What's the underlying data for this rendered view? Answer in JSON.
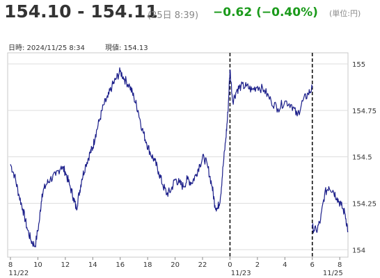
{
  "header": {
    "price_range": "154.10 - 154.11",
    "timestamp": "(25日 8:39)",
    "change": "−0.62 (−0.40%)",
    "unit": "(単位:円)"
  },
  "info": {
    "datetime": "日時: 2024/11/25 8:34",
    "current": "現値: 154.13"
  },
  "colors": {
    "line": "#1c1f8a",
    "grid": "#dddddd",
    "change": "#1a9a1a"
  },
  "chart_data": {
    "type": "line",
    "ylim": [
      153.96,
      155.06
    ],
    "y_ticks": [
      154,
      154.25,
      154.5,
      154.75,
      155
    ],
    "y_tick_labels": [
      "154",
      "154.25",
      "154.5",
      "154.75",
      "155"
    ],
    "x_ticks": [
      {
        "label": "8",
        "idx": 0
      },
      {
        "label": "10",
        "idx": 2
      },
      {
        "label": "12",
        "idx": 4
      },
      {
        "label": "14",
        "idx": 6
      },
      {
        "label": "16",
        "idx": 8
      },
      {
        "label": "18",
        "idx": 10
      },
      {
        "label": "20",
        "idx": 12
      },
      {
        "label": "22",
        "idx": 14
      },
      {
        "label": "0",
        "idx": 16
      },
      {
        "label": "2",
        "idx": 18
      },
      {
        "label": "4",
        "idx": 20
      },
      {
        "label": "6",
        "idx": 22
      },
      {
        "label": "8",
        "idx": 24
      }
    ],
    "date_labels": [
      {
        "label": "11/22",
        "idx": 0.6
      },
      {
        "label": "11/23",
        "idx": 16.8
      },
      {
        "label": "11/25",
        "idx": 23.5
      }
    ],
    "session_breaks": [
      16,
      22
    ],
    "series": [
      {
        "segments": [
          [
            [
              0,
              154.46
            ],
            [
              0.3,
              154.4
            ],
            [
              0.6,
              154.3
            ],
            [
              0.9,
              154.22
            ],
            [
              1.2,
              154.12
            ],
            [
              1.5,
              154.05
            ],
            [
              1.8,
              154.02
            ],
            [
              2.1,
              154.15
            ],
            [
              2.3,
              154.3
            ],
            [
              2.6,
              154.35
            ],
            [
              2.9,
              154.38
            ],
            [
              3.3,
              154.4
            ],
            [
              3.7,
              154.45
            ],
            [
              4.0,
              154.42
            ],
            [
              4.3,
              154.35
            ],
            [
              4.6,
              154.28
            ],
            [
              4.8,
              154.22
            ],
            [
              5.0,
              154.3
            ],
            [
              5.2,
              154.38
            ],
            [
              5.5,
              154.46
            ],
            [
              5.8,
              154.52
            ],
            [
              6.0,
              154.55
            ],
            [
              6.2,
              154.62
            ],
            [
              6.5,
              154.7
            ],
            [
              6.8,
              154.78
            ],
            [
              7.1,
              154.82
            ],
            [
              7.4,
              154.88
            ],
            [
              7.7,
              154.92
            ],
            [
              8.0,
              154.96
            ],
            [
              8.3,
              154.92
            ],
            [
              8.7,
              154.88
            ],
            [
              9.0,
              154.82
            ],
            [
              9.3,
              154.75
            ],
            [
              9.6,
              154.65
            ],
            [
              9.9,
              154.58
            ],
            [
              10.2,
              154.52
            ],
            [
              10.5,
              154.48
            ],
            [
              10.8,
              154.42
            ],
            [
              11.1,
              154.35
            ],
            [
              11.4,
              154.3
            ],
            [
              11.7,
              154.32
            ],
            [
              12.0,
              154.38
            ],
            [
              12.3,
              154.36
            ],
            [
              12.6,
              154.34
            ],
            [
              12.9,
              154.38
            ],
            [
              13.2,
              154.36
            ],
            [
              13.5,
              154.4
            ],
            [
              13.8,
              154.46
            ],
            [
              14.1,
              154.5
            ],
            [
              14.4,
              154.44
            ],
            [
              14.7,
              154.34
            ],
            [
              14.9,
              154.24
            ],
            [
              15.1,
              154.22
            ],
            [
              15.3,
              154.28
            ],
            [
              15.5,
              154.45
            ],
            [
              15.7,
              154.6
            ],
            [
              15.85,
              154.74
            ],
            [
              16.0,
              154.97
            ]
          ],
          [
            [
              16.0,
              154.97
            ],
            [
              16.2,
              154.8
            ],
            [
              16.5,
              154.86
            ],
            [
              16.8,
              154.88
            ],
            [
              17.2,
              154.88
            ],
            [
              17.6,
              154.86
            ],
            [
              18.0,
              154.88
            ],
            [
              18.5,
              154.86
            ],
            [
              19.0,
              154.8
            ],
            [
              19.5,
              154.76
            ],
            [
              20.0,
              154.8
            ],
            [
              20.5,
              154.78
            ],
            [
              20.9,
              154.72
            ],
            [
              21.3,
              154.8
            ],
            [
              21.7,
              154.84
            ],
            [
              22.0,
              154.87
            ]
          ],
          [
            [
              22.0,
              154.12
            ],
            [
              22.3,
              154.1
            ],
            [
              22.6,
              154.16
            ],
            [
              22.9,
              154.3
            ],
            [
              23.2,
              154.34
            ],
            [
              23.5,
              154.32
            ],
            [
              23.8,
              154.28
            ],
            [
              24.1,
              154.24
            ],
            [
              24.4,
              154.19
            ],
            [
              24.6,
              154.1
            ]
          ]
        ]
      }
    ]
  }
}
